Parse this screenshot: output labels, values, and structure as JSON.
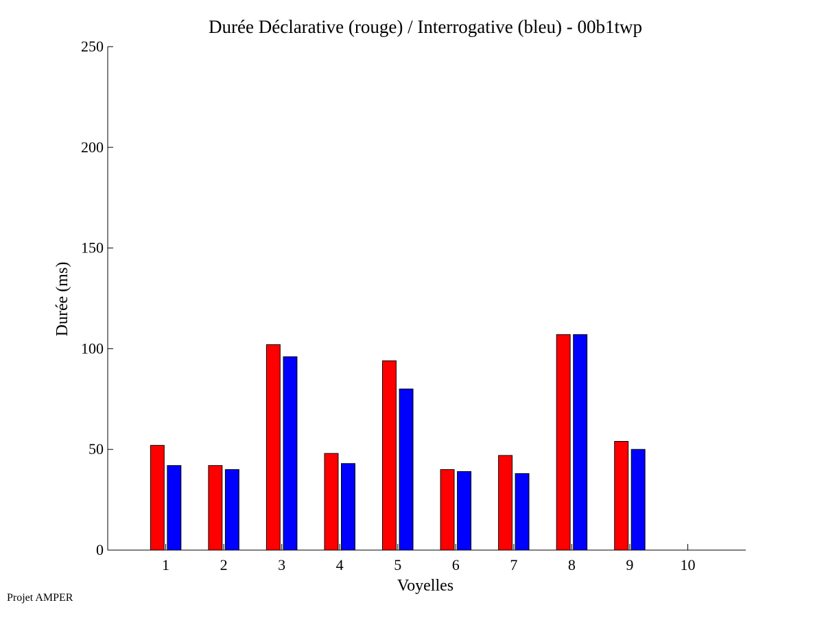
{
  "footer": "Projet AMPER",
  "chart_data": {
    "type": "bar",
    "title": "Durée Déclarative (rouge) / Interrogative (bleu) - 00b1twp",
    "xlabel": "Voyelles",
    "ylabel": "Durée (ms)",
    "ylim": [
      0,
      250
    ],
    "yticks": [
      0,
      50,
      100,
      150,
      200,
      250
    ],
    "categories": [
      "1",
      "2",
      "3",
      "4",
      "5",
      "6",
      "7",
      "8",
      "9",
      "10"
    ],
    "series": [
      {
        "color": "#ff0000",
        "values": [
          52,
          42,
          102,
          48,
          94,
          40,
          47,
          107,
          54,
          null
        ]
      },
      {
        "color": "#0000ff",
        "values": [
          42,
          40,
          96,
          43,
          80,
          39,
          38,
          107,
          50,
          null
        ]
      }
    ],
    "grid": false,
    "legend": "none"
  }
}
